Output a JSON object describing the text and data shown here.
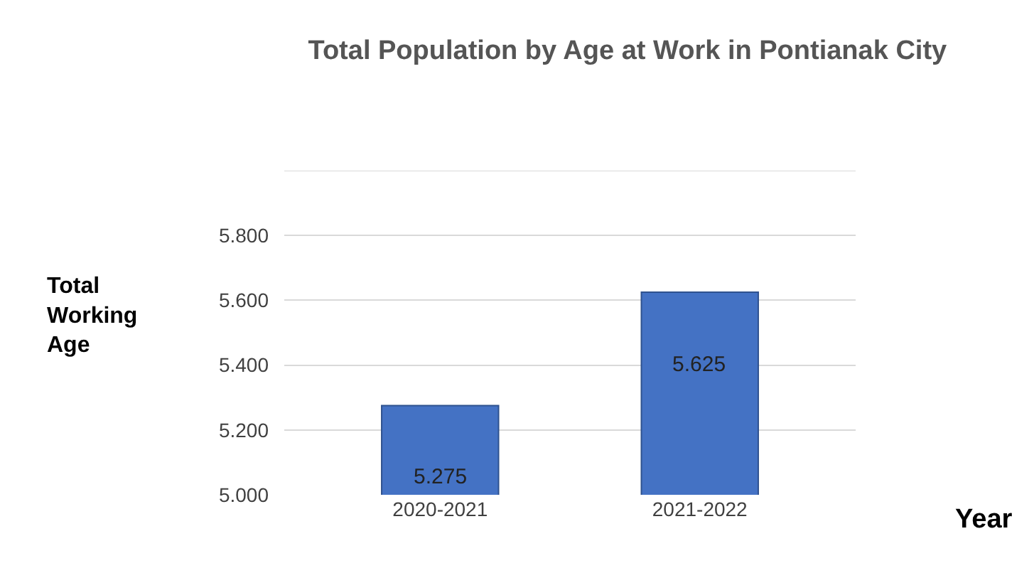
{
  "chart_data": {
    "type": "bar",
    "title": "Total Population by Age at Work in Pontianak City",
    "xlabel": "Year",
    "ylabel": "Total Working Age",
    "categories": [
      "2020-2021",
      "2021-2022"
    ],
    "values": [
      5.275,
      5.625
    ],
    "value_labels": [
      "5.275",
      "5.625"
    ],
    "color": "#4472c4",
    "ylim": [
      5.0,
      6.0
    ],
    "yticks": [
      {
        "value": 5.0,
        "label": "5.000"
      },
      {
        "value": 5.2,
        "label": "5.200"
      },
      {
        "value": 5.4,
        "label": "5.400"
      },
      {
        "value": 5.6,
        "label": "5.600"
      },
      {
        "value": 5.8,
        "label": "5.800"
      },
      {
        "value": 6.0,
        "label": null
      }
    ],
    "grid": "y",
    "legend": false
  }
}
